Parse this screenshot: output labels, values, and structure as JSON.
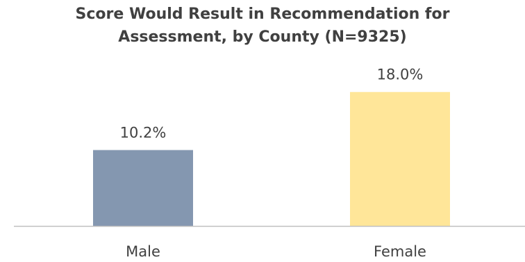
{
  "chart_data": {
    "type": "bar",
    "title": [
      "Score Would Result in Recommendation for",
      "Assessment, by County (N=9325)"
    ],
    "categories": [
      "Male",
      "Female"
    ],
    "values": [
      10.2,
      18.0
    ],
    "data_labels": [
      "10.2%",
      "18.0%"
    ],
    "colors": [
      "#8497b0",
      "#ffe699"
    ],
    "axis_color": "#bfbfbf",
    "ylim": [
      0,
      19
    ],
    "xlabel": "",
    "ylabel": "",
    "grid": false,
    "legend": "none"
  }
}
